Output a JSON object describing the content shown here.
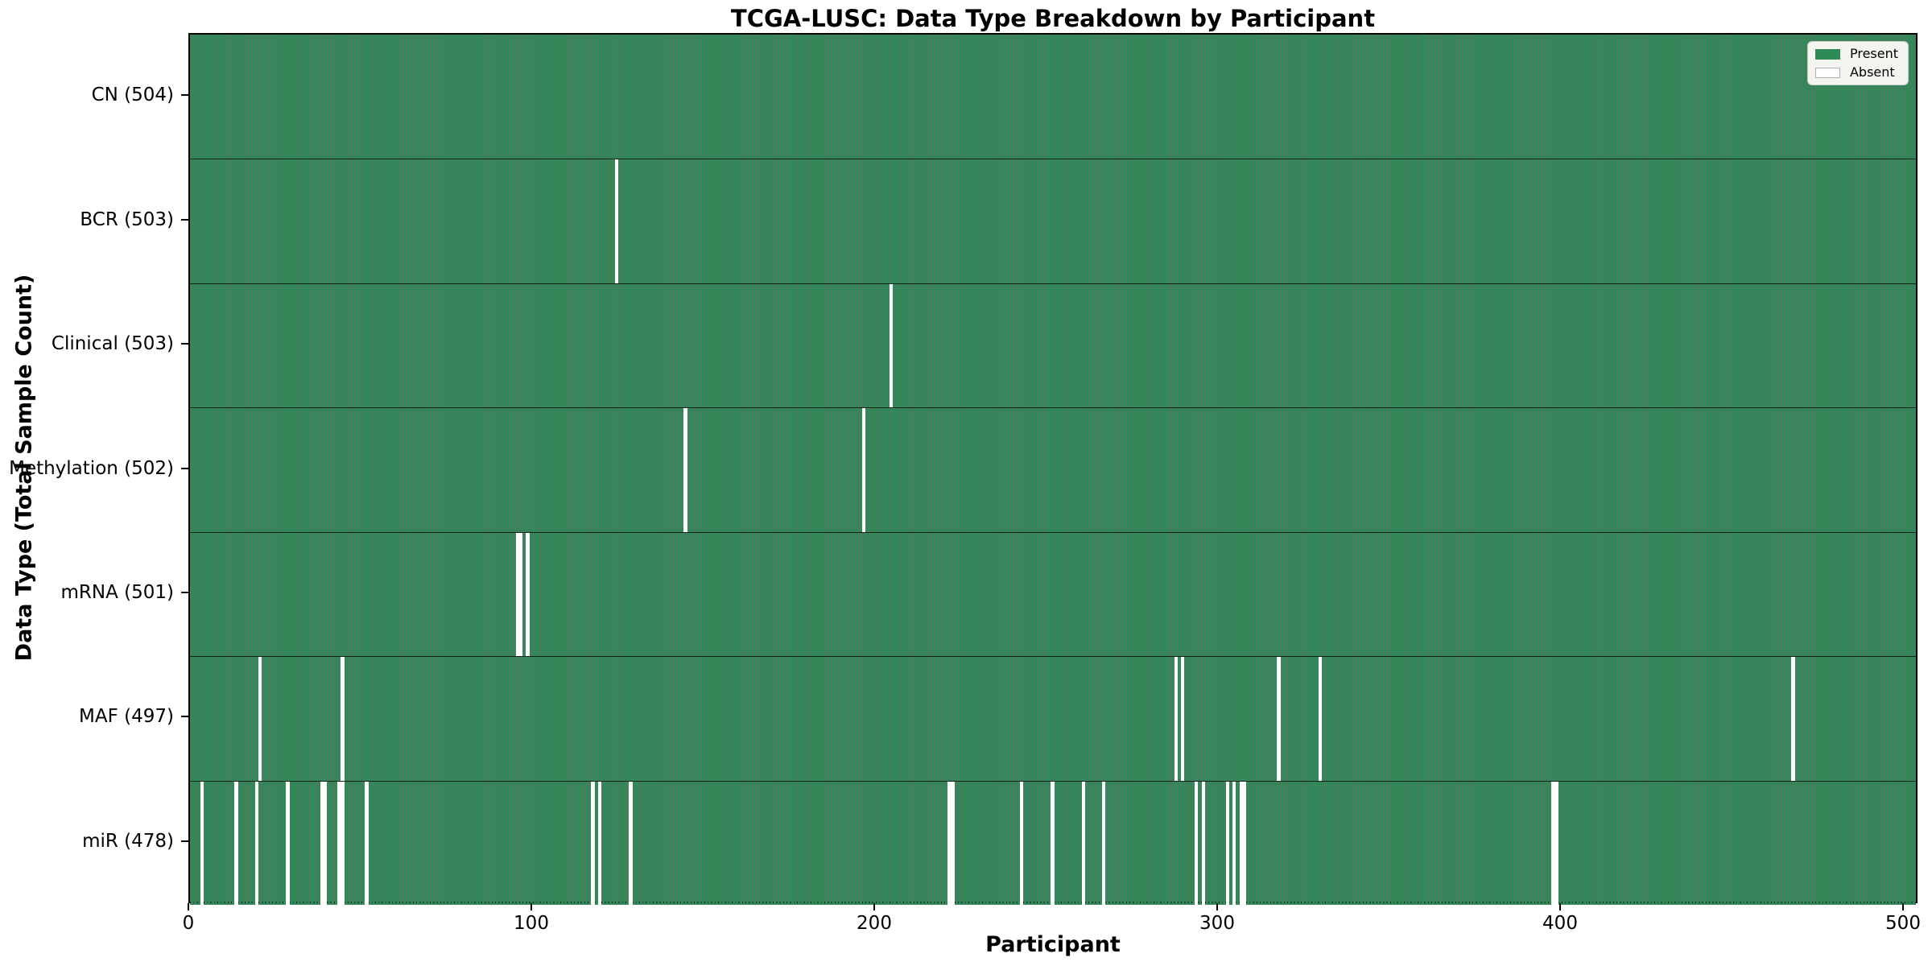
{
  "title": "TCGA-LUSC: Data Type Breakdown by Participant",
  "xlabel": "Participant",
  "ylabel": "Data Type (Total Sample Count)",
  "legend": {
    "present_label": "Present",
    "absent_label": "Absent"
  },
  "colors": {
    "present": "#2e8b57",
    "absent": "#ffffff",
    "bar_edge": "rgba(15,35,25,0.65)",
    "row_separator": "rgba(0,0,0,0.75)",
    "axis": "#000000",
    "legend_bg": "#f4f4f0",
    "legend_border": "#cccccc",
    "legend_absent_swatch_edge": "#b0b0b0"
  },
  "chart_data": {
    "type": "heatmap",
    "description": "Presence/absence matrix: one vertical bar per participant per data-type row; green = Present, white = Absent",
    "n_participants": 504,
    "x_axis": {
      "label": "Participant",
      "ticks": [
        0,
        100,
        200,
        300,
        400,
        500
      ],
      "range": [
        0,
        504
      ]
    },
    "legend_entries": [
      "Present",
      "Absent"
    ],
    "legend_position": "upper right",
    "grid": false,
    "rows": [
      {
        "label": "CN (504)",
        "name": "CN",
        "present_count": 504,
        "absent_participants": []
      },
      {
        "label": "BCR (503)",
        "name": "BCR",
        "present_count": 503,
        "absent_participants": [
          124
        ]
      },
      {
        "label": "Clinical (503)",
        "name": "Clinical",
        "present_count": 503,
        "absent_participants": [
          204
        ]
      },
      {
        "label": "Methylation (502)",
        "name": "Methylation",
        "present_count": 502,
        "absent_participants": [
          144,
          196
        ]
      },
      {
        "label": "mRNA (501)",
        "name": "mRNA",
        "present_count": 501,
        "absent_participants": [
          95,
          96,
          98
        ]
      },
      {
        "label": "MAF (497)",
        "name": "MAF",
        "present_count": 497,
        "absent_participants": [
          20,
          44,
          287,
          289,
          317,
          329,
          467
        ]
      },
      {
        "label": "miR (478)",
        "name": "miR",
        "present_count": 478,
        "absent_participants": [
          3,
          13,
          19,
          28,
          38,
          39,
          43,
          44,
          51,
          117,
          119,
          128,
          221,
          222,
          242,
          251,
          260,
          266,
          293,
          295,
          302,
          304,
          306,
          307,
          397,
          398
        ]
      }
    ]
  }
}
